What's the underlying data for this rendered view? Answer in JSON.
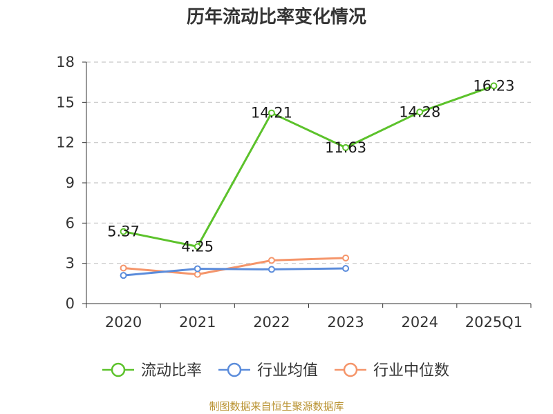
{
  "chart_data": {
    "type": "line",
    "title": "历年流动比率变化情况",
    "categories": [
      "2020",
      "2021",
      "2022",
      "2023",
      "2024",
      "2025Q1"
    ],
    "ylim": [
      0,
      18
    ],
    "yticks": [
      0,
      3,
      6,
      9,
      12,
      15,
      18
    ],
    "grid": true,
    "legend_position": "bottom",
    "series": [
      {
        "name": "流动比率",
        "color": "#5cc22b",
        "values": [
          5.37,
          4.25,
          14.21,
          11.63,
          14.28,
          16.23
        ],
        "show_labels": true
      },
      {
        "name": "行业均值",
        "color": "#5b8cdb",
        "values": [
          2.1,
          2.6,
          2.55,
          2.62,
          null,
          null
        ],
        "show_labels": false
      },
      {
        "name": "行业中位数",
        "color": "#f5956a",
        "values": [
          2.65,
          2.18,
          3.22,
          3.4,
          null,
          null
        ],
        "show_labels": false
      }
    ]
  },
  "footer": {
    "source": "制图数据来自恒生聚源数据库",
    "color": "#b8912f"
  }
}
